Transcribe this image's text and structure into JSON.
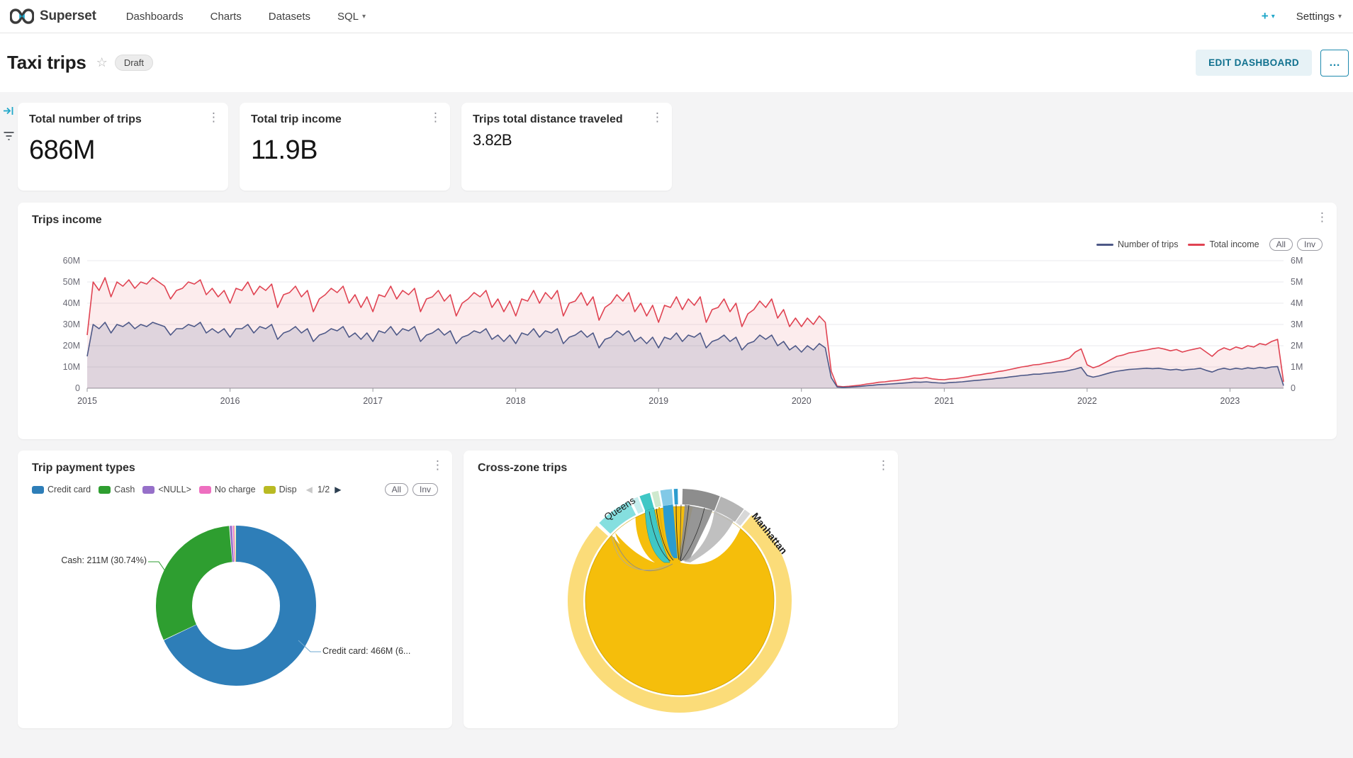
{
  "navbar": {
    "brand": "Superset",
    "items": [
      {
        "label": "Dashboards",
        "caret": false
      },
      {
        "label": "Charts",
        "caret": false
      },
      {
        "label": "Datasets",
        "caret": false
      },
      {
        "label": "SQL",
        "caret": true
      }
    ],
    "plus_label": "+",
    "settings_label": "Settings"
  },
  "header": {
    "title": "Taxi trips",
    "status_badge": "Draft",
    "edit_button": "EDIT DASHBOARD",
    "more_button": "..."
  },
  "kpis": [
    {
      "title": "Total number of trips",
      "value": "686M"
    },
    {
      "title": "Total trip income",
      "value": "11.9B"
    },
    {
      "title": "Trips total distance traveled",
      "value": "3.82B"
    }
  ],
  "chart_data": [
    {
      "type": "line",
      "title": "Trips income",
      "x_start_year": 2015,
      "points_per_year": 24,
      "x_ticks": [
        "2015",
        "2016",
        "2017",
        "2018",
        "2019",
        "2020",
        "2021",
        "2022",
        "2023"
      ],
      "y_left_ticks": [
        "60M",
        "50M",
        "40M",
        "30M",
        "20M",
        "10M",
        "0"
      ],
      "y_left_max": 60,
      "y_right_ticks": [
        "6M",
        "5M",
        "4M",
        "3M",
        "2M",
        "1M",
        "0"
      ],
      "y_right_max": 6,
      "legend_controls": [
        "All",
        "Inv"
      ],
      "grid": true,
      "legend_position": "top-right",
      "series": [
        {
          "name": "Number of trips",
          "color": "#4d5887",
          "fill": "rgba(77,88,135,0.16)",
          "values": [
            15,
            30,
            28,
            31,
            26,
            30,
            29,
            31,
            28,
            30,
            29,
            31,
            30,
            29,
            25,
            28,
            28,
            30,
            29,
            31,
            26,
            28,
            26,
            28,
            24,
            28,
            28,
            30,
            26,
            29,
            28,
            30,
            23,
            26,
            27,
            29,
            26,
            28,
            22,
            25,
            26,
            28,
            27,
            29,
            24,
            26,
            23,
            26,
            22,
            27,
            26,
            29,
            25,
            28,
            27,
            29,
            22,
            25,
            26,
            28,
            25,
            27,
            21,
            24,
            25,
            27,
            26,
            28,
            23,
            25,
            22,
            25,
            21,
            26,
            25,
            28,
            24,
            27,
            26,
            28,
            21,
            24,
            25,
            27,
            24,
            26,
            19,
            23,
            24,
            27,
            25,
            27,
            22,
            24,
            21,
            24,
            19,
            24,
            23,
            26,
            22,
            25,
            24,
            26,
            19,
            22,
            23,
            25,
            22,
            24,
            18,
            21,
            22,
            25,
            23,
            25,
            20,
            22,
            18,
            20,
            17,
            20,
            18,
            21,
            19,
            5,
            0.6,
            0.4,
            0.5,
            0.7,
            0.9,
            1.2,
            1.4,
            1.7,
            1.8,
            2,
            2.2,
            2.4,
            2.6,
            2.9,
            2.8,
            3,
            2.7,
            2.5,
            2.4,
            2.7,
            2.8,
            3,
            3.3,
            3.6,
            3.8,
            4.1,
            4.3,
            4.7,
            4.9,
            5.3,
            5.6,
            6,
            6.2,
            6.6,
            6.6,
            7,
            7.2,
            7.6,
            7.8,
            8.4,
            9,
            9.8,
            6,
            5.2,
            5.8,
            6.6,
            7.4,
            8,
            8.4,
            8.8,
            9,
            9.2,
            9.4,
            9.2,
            9.4,
            9,
            8.6,
            8.9,
            8.4,
            8.8,
            9,
            9.4,
            8.4,
            7.6,
            8.8,
            9.4,
            8.8,
            9.4,
            9,
            9.6,
            9.2,
            9.8,
            9.4,
            10,
            10.2,
            1.2
          ]
        },
        {
          "name": "Total income",
          "color": "#e04352",
          "fill": "rgba(224,67,82,0.10)",
          "values": [
            25,
            50,
            46,
            52,
            43,
            50,
            48,
            51,
            47,
            50,
            49,
            52,
            50,
            48,
            42,
            46,
            47,
            50,
            49,
            51,
            44,
            47,
            43,
            46,
            40,
            47,
            46,
            50,
            44,
            48,
            46,
            49,
            38,
            44,
            45,
            48,
            43,
            46,
            36,
            42,
            44,
            47,
            45,
            48,
            40,
            44,
            38,
            43,
            36,
            44,
            43,
            48,
            42,
            46,
            44,
            47,
            36,
            42,
            43,
            46,
            41,
            44,
            34,
            40,
            42,
            45,
            43,
            46,
            38,
            42,
            36,
            41,
            34,
            42,
            41,
            46,
            40,
            45,
            42,
            46,
            34,
            40,
            41,
            45,
            39,
            43,
            32,
            38,
            40,
            44,
            41,
            45,
            36,
            40,
            34,
            39,
            31,
            39,
            38,
            43,
            37,
            42,
            39,
            43,
            31,
            37,
            38,
            42,
            36,
            40,
            29,
            35,
            37,
            41,
            38,
            42,
            33,
            37,
            29,
            33,
            29,
            33,
            30,
            34,
            31,
            8,
            1,
            0.7,
            0.9,
            1.2,
            1.5,
            2,
            2.3,
            2.8,
            3,
            3.4,
            3.6,
            4,
            4.3,
            4.8,
            4.6,
            5,
            4.4,
            4.1,
            4,
            4.4,
            4.6,
            5,
            5.4,
            6,
            6.3,
            6.8,
            7.2,
            7.8,
            8.2,
            8.8,
            9.4,
            10,
            10.4,
            11,
            11.2,
            11.8,
            12.2,
            12.8,
            13.4,
            14.2,
            17,
            18.5,
            11,
            9.6,
            10.5,
            12,
            13.5,
            15,
            15.6,
            16.6,
            17,
            17.6,
            18,
            18.6,
            19,
            18.4,
            17.6,
            18.2,
            17,
            17.8,
            18.4,
            19,
            17,
            15,
            17.6,
            19,
            18,
            19.4,
            18.6,
            20,
            19.4,
            21,
            20.4,
            22,
            23,
            3
          ]
        }
      ]
    },
    {
      "type": "pie",
      "title": "Trip payment types",
      "donut": true,
      "legend": [
        {
          "label": "Credit card",
          "color": "#2E7EB8"
        },
        {
          "label": "Cash",
          "color": "#2E9E30"
        },
        {
          "label": "<NULL>",
          "color": "#9670C9"
        },
        {
          "label": "No charge",
          "color": "#EE6FC0"
        },
        {
          "label": "Disp",
          "color": "#B9BA23"
        }
      ],
      "legend_pagination": {
        "prev": "disabled",
        "label": "1/2",
        "next": "enabled"
      },
      "legend_controls": [
        "All",
        "Inv"
      ],
      "slices": [
        {
          "name": "Credit card",
          "value_millions": 466,
          "percent": "67.93%",
          "color": "#2E7EB8"
        },
        {
          "name": "Cash",
          "value_millions": 211,
          "percent": "30.74%",
          "color": "#2E9E30"
        },
        {
          "name": "<NULL>",
          "value_millions": 4.2,
          "color": "#9670C9"
        },
        {
          "name": "No charge",
          "value_millions": 2.8,
          "color": "#EE6FC0"
        },
        {
          "name": "Disp",
          "value_millions": 1.6,
          "color": "#B9BA23"
        }
      ],
      "callouts": {
        "cash": "Cash: 211M (30.74%)",
        "credit": "Credit card: 466M (6..."
      }
    },
    {
      "type": "chord",
      "title": "Cross-zone trips",
      "zones": [
        "Queens",
        "Manhattan"
      ],
      "colors": {
        "outer_ring": "#FBDC79",
        "main_arc": "#F5BE0B",
        "queens": "#85DFDF",
        "teal": "#3FC7C5",
        "pale_green": "#CFE9CE",
        "sky_blue": "#82C9E7",
        "deep_blue": "#2C9CCE",
        "gray_dark": "#8D8D8D",
        "gray_light": "#B5B5B5"
      },
      "ring_segments": [
        {
          "from": 40,
          "to": 312,
          "color": "#FBDC79"
        },
        {
          "from": -46,
          "to": -27,
          "color": "#85DFDF"
        },
        {
          "from": -25.5,
          "to": -22,
          "color": "#C5EEEE"
        },
        {
          "from": -21,
          "to": -15.5,
          "color": "#3FC7C5"
        },
        {
          "from": -14.5,
          "to": -11,
          "color": "#CFE9CE"
        },
        {
          "from": -10,
          "to": -4,
          "color": "#82C9E7"
        },
        {
          "from": -3,
          "to": -1,
          "color": "#2C9CCE"
        },
        {
          "from": 1.5,
          "to": 21,
          "color": "#8D8D8D"
        },
        {
          "from": 21.5,
          "to": 35,
          "color": "#B5B5B5"
        },
        {
          "from": 35.5,
          "to": 39,
          "color": "#D8D8D8"
        }
      ]
    }
  ],
  "theme": {
    "accent": "#20a7c9",
    "page_bg": "#f4f4f5",
    "panel_bg": "#ffffff"
  }
}
